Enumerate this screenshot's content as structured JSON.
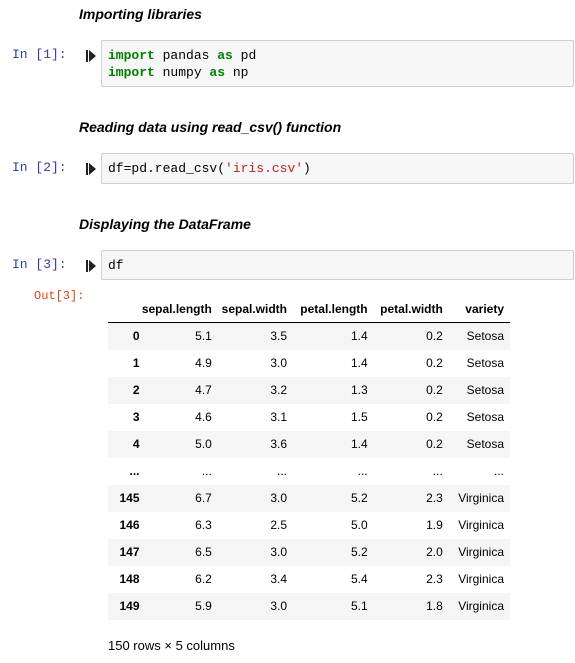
{
  "markdown": [
    "Importing libraries",
    "Reading data using read_csv() function",
    "Displaying the DataFrame"
  ],
  "cells": [
    {
      "prompt": "In [1]:",
      "lines": [
        {
          "kw": "import",
          "rest1": " pandas ",
          "kw2": "as",
          "rest2": " pd"
        },
        {
          "kw": "import",
          "rest1": " numpy ",
          "kw2": "as",
          "rest2": " np"
        }
      ]
    },
    {
      "prompt": "In [2]:",
      "code_prefix": "df=pd.read_csv(",
      "code_str": "'iris.csv'",
      "code_suffix": ")"
    },
    {
      "prompt": "In [3]:",
      "code": "df"
    }
  ],
  "output": {
    "prompt": "Out[3]:",
    "columns": [
      "sepal.length",
      "sepal.width",
      "petal.length",
      "petal.width",
      "variety"
    ],
    "rows": [
      [
        "0",
        "5.1",
        "3.5",
        "1.4",
        "0.2",
        "Setosa"
      ],
      [
        "1",
        "4.9",
        "3.0",
        "1.4",
        "0.2",
        "Setosa"
      ],
      [
        "2",
        "4.7",
        "3.2",
        "1.3",
        "0.2",
        "Setosa"
      ],
      [
        "3",
        "4.6",
        "3.1",
        "1.5",
        "0.2",
        "Setosa"
      ],
      [
        "4",
        "5.0",
        "3.6",
        "1.4",
        "0.2",
        "Setosa"
      ],
      [
        "...",
        "...",
        "...",
        "...",
        "...",
        "..."
      ],
      [
        "145",
        "6.7",
        "3.0",
        "5.2",
        "2.3",
        "Virginica"
      ],
      [
        "146",
        "6.3",
        "2.5",
        "5.0",
        "1.9",
        "Virginica"
      ],
      [
        "147",
        "6.5",
        "3.0",
        "5.2",
        "2.0",
        "Virginica"
      ],
      [
        "148",
        "6.2",
        "3.4",
        "5.4",
        "2.3",
        "Virginica"
      ],
      [
        "149",
        "5.9",
        "3.0",
        "5.1",
        "1.8",
        "Virginica"
      ]
    ],
    "shape_text": "150 rows × 5 columns"
  }
}
